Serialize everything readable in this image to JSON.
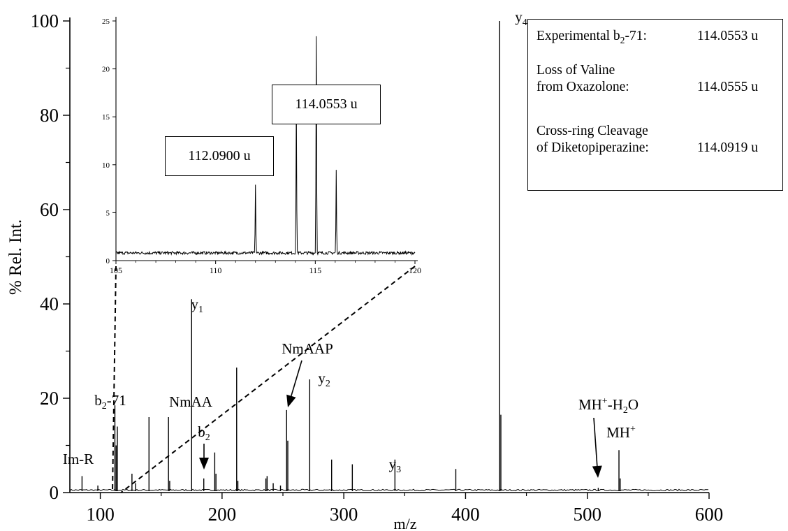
{
  "chart_data": [
    {
      "type": "bar",
      "role": "main spectrum",
      "xlabel": "m/z",
      "ylabel": "% Rel. Int.",
      "xlim": [
        75,
        600
      ],
      "ylim": [
        0,
        100
      ],
      "x_ticks": [
        "100",
        "200",
        "300",
        "400",
        "500",
        "600"
      ],
      "x_tick_values": [
        100,
        200,
        300,
        400,
        500,
        600
      ],
      "y_ticks": [
        "0",
        "20",
        "40",
        "60",
        "80",
        "100"
      ],
      "y_tick_values": [
        0,
        20,
        40,
        60,
        80,
        100
      ],
      "peaks": [
        {
          "x": 85,
          "y": 3.5
        },
        {
          "x": 98,
          "y": 1.5
        },
        {
          "x": 112,
          "y": 18.5
        },
        {
          "x": 113,
          "y": 10
        },
        {
          "x": 114,
          "y": 14
        },
        {
          "x": 126,
          "y": 4
        },
        {
          "x": 129,
          "y": 2
        },
        {
          "x": 140,
          "y": 16
        },
        {
          "x": 156,
          "y": 16
        },
        {
          "x": 157,
          "y": 2.5
        },
        {
          "x": 175,
          "y": 41
        },
        {
          "x": 185,
          "y": 3
        },
        {
          "x": 194,
          "y": 8.5
        },
        {
          "x": 195,
          "y": 4
        },
        {
          "x": 212,
          "y": 26.5
        },
        {
          "x": 213,
          "y": 2.5
        },
        {
          "x": 236,
          "y": 3
        },
        {
          "x": 237,
          "y": 3.5
        },
        {
          "x": 242,
          "y": 2
        },
        {
          "x": 248,
          "y": 1.5
        },
        {
          "x": 253,
          "y": 17.5
        },
        {
          "x": 254,
          "y": 11
        },
        {
          "x": 272,
          "y": 24
        },
        {
          "x": 290,
          "y": 7
        },
        {
          "x": 307,
          "y": 6
        },
        {
          "x": 342,
          "y": 7
        },
        {
          "x": 392,
          "y": 5
        },
        {
          "x": 428,
          "y": 100
        },
        {
          "x": 429,
          "y": 16.5
        },
        {
          "x": 509,
          "y": 1
        },
        {
          "x": 526,
          "y": 9
        },
        {
          "x": 527,
          "y": 3
        }
      ],
      "annotations": [
        {
          "text": "y4",
          "base": "y",
          "sub": "4",
          "x": 428,
          "y": 100
        },
        {
          "text": "y1",
          "base": "y",
          "sub": "1",
          "x": 175,
          "y": 41
        },
        {
          "text": "y2",
          "base": "y",
          "sub": "2",
          "x": 272,
          "y": 24
        },
        {
          "text": "y3",
          "base": "y",
          "sub": "3",
          "x": 342,
          "y": 7
        },
        {
          "text": "b2-71",
          "base": "b",
          "sub": "2",
          "rest": "-71",
          "x": 112,
          "y": 18.5
        },
        {
          "text": "b2",
          "base": "b",
          "sub": "2",
          "x": 185,
          "y": 3,
          "arrow": true
        },
        {
          "text": "NmAA",
          "x": 156,
          "y": 16
        },
        {
          "text": "NmAAP",
          "x": 253,
          "y": 17.5,
          "arrow": true
        },
        {
          "text": "Im-R",
          "x": 85,
          "y": 3.5
        },
        {
          "text": "MH+-H2O",
          "x": 509,
          "y": 1,
          "arrow": true
        },
        {
          "text": "MH+",
          "x": 526,
          "y": 9
        }
      ]
    },
    {
      "type": "line",
      "role": "inset zoom",
      "xlim": [
        105,
        120
      ],
      "ylim": [
        0,
        25
      ],
      "x_ticks": [
        "105",
        "110",
        "115",
        "120"
      ],
      "x_tick_values": [
        105,
        110,
        115,
        120
      ],
      "y_ticks": [
        "0",
        "5",
        "10",
        "15",
        "20",
        "25"
      ],
      "y_tick_values": [
        0,
        5,
        10,
        15,
        20,
        25
      ],
      "baseline": 0.8,
      "peaks": [
        {
          "x": 112.0,
          "y": 7.8
        },
        {
          "x": 114.05,
          "y": 17.3
        },
        {
          "x": 115.05,
          "y": 23.5
        },
        {
          "x": 116.05,
          "y": 9.4
        }
      ],
      "labels": [
        {
          "text": "114.0553 u"
        },
        {
          "text": "112.0900 u"
        }
      ]
    }
  ],
  "info_box": {
    "rows": [
      {
        "label_pre": "Experimental b",
        "label_sub": "2",
        "label_post": "-71:",
        "value": "114.0553 u"
      },
      {
        "label_line1": "Loss of Valine",
        "label_line2": "from Oxazolone:",
        "value": "114.0555 u"
      },
      {
        "label_line1": "Cross-ring Cleavage",
        "label_line2": "of Diketopiperazine:",
        "value": "114.0919 u"
      }
    ]
  }
}
